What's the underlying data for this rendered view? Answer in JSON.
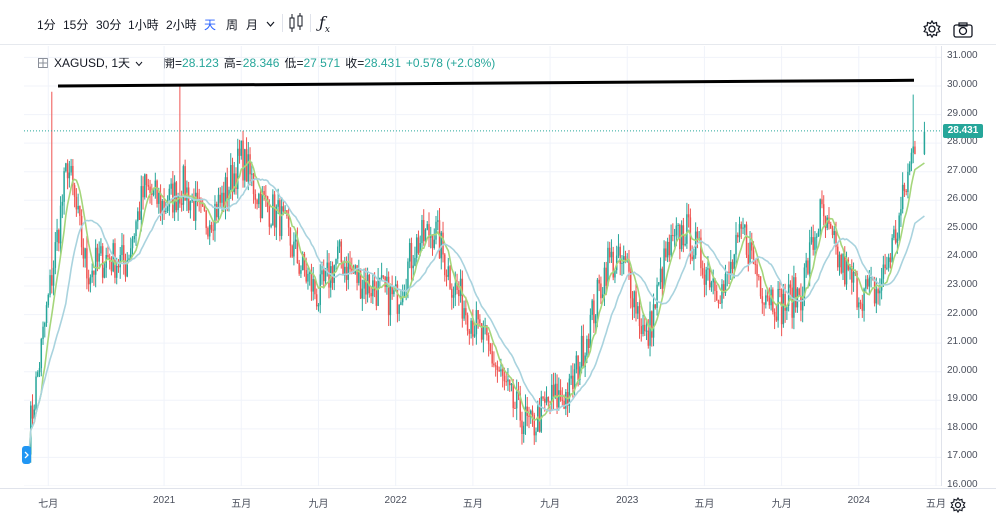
{
  "toolbar": {
    "intervals": [
      "1分",
      "15分",
      "30分",
      "1小時",
      "2小時",
      "天",
      "周",
      "月"
    ],
    "active_interval": "天",
    "more_icon": "chevron-down-icon",
    "candles_icon": "candles-icon",
    "indicator_icon": "fx-icon",
    "settings_icon": "gear-icon",
    "snapshot_icon": "camera-icon"
  },
  "legend": {
    "symbol": "XAGUSD, 1天",
    "open_label": "開=",
    "open": "28.123",
    "high_label": "高=",
    "high": "28.346",
    "low_label": "低=",
    "low": "27.571",
    "close_label": "收=",
    "close": "28.431",
    "change": "+0.578 (+2.08%)"
  },
  "colors": {
    "up": "#26a69a",
    "down": "#ef5350",
    "ma_short": "#a5d67b",
    "ma_long": "#a9d3de",
    "resistance": "#000000",
    "active": "#2962ff"
  },
  "price_axis": [
    "31.000",
    "30.000",
    "29.000",
    "28.000",
    "27.000",
    "26.000",
    "25.000",
    "24.000",
    "23.000",
    "22.000",
    "21.000",
    "20.000",
    "19.000",
    "18.000",
    "17.000",
    "16.000"
  ],
  "current_price_tag": "28.431",
  "time_axis": [
    "七月",
    "2021",
    "五月",
    "九月",
    "2022",
    "五月",
    "九月",
    "2023",
    "五月",
    "九月",
    "2024",
    "五月"
  ],
  "chart_data": {
    "type": "candlestick",
    "series": [
      {
        "name": "XAGUSD",
        "x": [
          "2020-06",
          "2020-07",
          "2020-08",
          "2020-09",
          "2020-10",
          "2020-11",
          "2020-12",
          "2021-01",
          "2021-02",
          "2021-03",
          "2021-04",
          "2021-05",
          "2021-06",
          "2021-07",
          "2021-08",
          "2021-09",
          "2021-10",
          "2021-11",
          "2021-12",
          "2022-01",
          "2022-02",
          "2022-03",
          "2022-04",
          "2022-05",
          "2022-06",
          "2022-07",
          "2022-08",
          "2022-09",
          "2022-10",
          "2022-11",
          "2022-12",
          "2023-01",
          "2023-02",
          "2023-03",
          "2023-04",
          "2023-05",
          "2023-06",
          "2023-07",
          "2023-08",
          "2023-09",
          "2023-10",
          "2023-11",
          "2023-12",
          "2024-01",
          "2024-02",
          "2024-03",
          "2024-04"
        ],
        "close": [
          17.8,
          22.5,
          27.3,
          23.5,
          24.0,
          23.8,
          26.4,
          25.8,
          26.5,
          25.2,
          26.0,
          27.5,
          26.0,
          25.4,
          23.8,
          22.6,
          24.0,
          23.3,
          22.9,
          22.5,
          24.4,
          25.0,
          23.0,
          21.8,
          20.5,
          18.9,
          18.0,
          19.0,
          19.2,
          21.5,
          23.9,
          23.6,
          21.0,
          24.0,
          25.0,
          23.7,
          22.8,
          24.9,
          23.0,
          22.3,
          22.8,
          25.5,
          23.8,
          22.8,
          22.8,
          25.0,
          28.4
        ]
      },
      {
        "name": "MA short"
      },
      {
        "name": "MA long"
      }
    ],
    "resistance_line": [
      30.0,
      30.2
    ],
    "ylim": [
      16,
      31.4
    ]
  }
}
